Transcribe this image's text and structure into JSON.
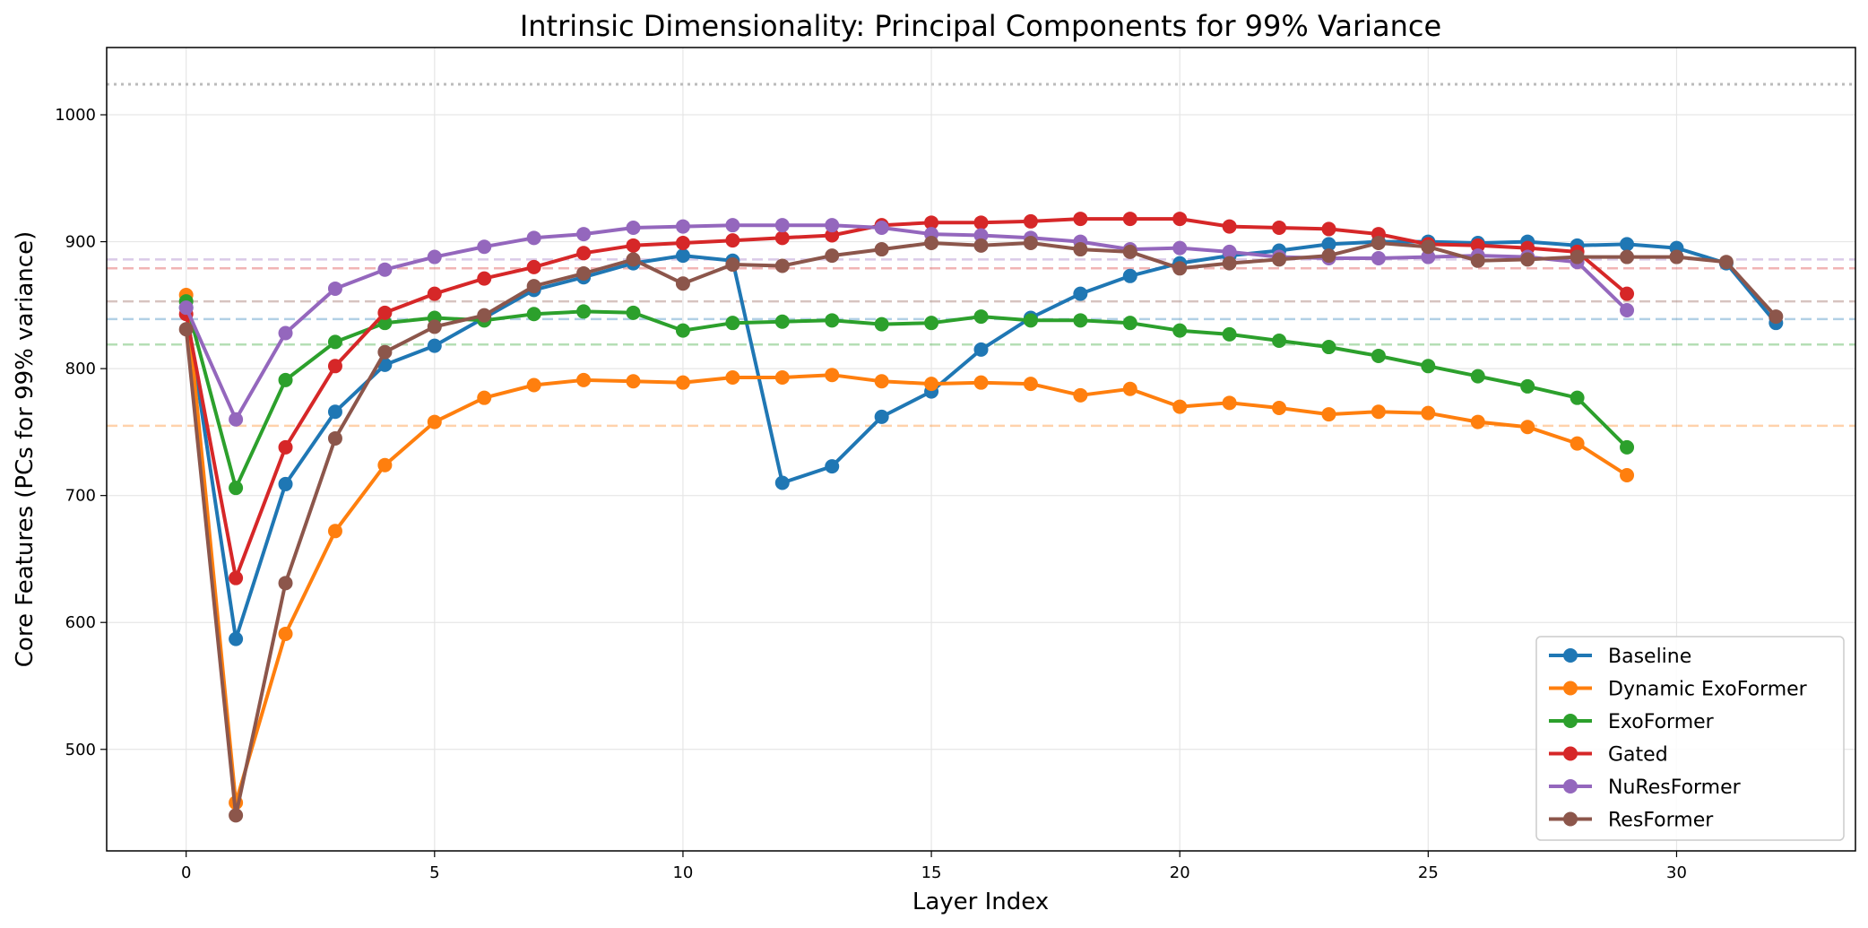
{
  "chart_data": {
    "type": "line",
    "title": "Intrinsic Dimensionality: Principal Components for 99% Variance",
    "xlabel": "Layer Index",
    "ylabel": "Core Features (PCs for 99% variance)",
    "xlim": [
      -1.6,
      33.6
    ],
    "ylim": [
      420,
      1053
    ],
    "xticks": [
      0,
      5,
      10,
      15,
      20,
      25,
      30
    ],
    "yticks": [
      500,
      600,
      700,
      800,
      900,
      1000
    ],
    "grid": true,
    "legend_position": "lower-right",
    "reference_line": {
      "value": 1024,
      "color": "#bbbbbb",
      "style": "dotted"
    },
    "series": [
      {
        "name": "Baseline",
        "color": "#1f77b4",
        "mean": 839,
        "x": [
          0,
          1,
          2,
          3,
          4,
          5,
          6,
          7,
          8,
          9,
          10,
          11,
          12,
          13,
          14,
          15,
          16,
          17,
          18,
          19,
          20,
          21,
          22,
          23,
          24,
          25,
          26,
          27,
          28,
          29,
          30,
          31,
          32
        ],
        "values": [
          848,
          587,
          709,
          766,
          803,
          818,
          840,
          862,
          872,
          883,
          889,
          885,
          710,
          723,
          762,
          782,
          815,
          840,
          859,
          873,
          883,
          889,
          893,
          898,
          900,
          900,
          899,
          900,
          897,
          898,
          895,
          883,
          836
        ]
      },
      {
        "name": "Dynamic ExoFormer",
        "color": "#ff7f0e",
        "mean": 755,
        "x": [
          0,
          1,
          2,
          3,
          4,
          5,
          6,
          7,
          8,
          9,
          10,
          11,
          12,
          13,
          14,
          15,
          16,
          17,
          18,
          19,
          20,
          21,
          22,
          23,
          24,
          25,
          26,
          27,
          28,
          29
        ],
        "values": [
          858,
          458,
          591,
          672,
          724,
          758,
          777,
          787,
          791,
          790,
          789,
          793,
          793,
          795,
          790,
          788,
          789,
          788,
          779,
          784,
          770,
          773,
          769,
          764,
          766,
          765,
          758,
          754,
          741,
          716
        ]
      },
      {
        "name": "ExoFormer",
        "color": "#2ca02c",
        "mean": 819,
        "x": [
          0,
          1,
          2,
          3,
          4,
          5,
          6,
          7,
          8,
          9,
          10,
          11,
          12,
          13,
          14,
          15,
          16,
          17,
          18,
          19,
          20,
          21,
          22,
          23,
          24,
          25,
          26,
          27,
          28,
          29
        ],
        "values": [
          853,
          706,
          791,
          821,
          836,
          840,
          838,
          843,
          845,
          844,
          830,
          836,
          837,
          838,
          835,
          836,
          841,
          838,
          838,
          836,
          830,
          827,
          822,
          817,
          810,
          802,
          794,
          786,
          777,
          738
        ]
      },
      {
        "name": "Gated",
        "color": "#d62728",
        "mean": 879,
        "x": [
          0,
          1,
          2,
          3,
          4,
          5,
          6,
          7,
          8,
          9,
          10,
          11,
          12,
          13,
          14,
          15,
          16,
          17,
          18,
          19,
          20,
          21,
          22,
          23,
          24,
          25,
          26,
          27,
          28,
          29
        ],
        "values": [
          843,
          635,
          738,
          802,
          844,
          859,
          871,
          880,
          891,
          897,
          899,
          901,
          903,
          905,
          913,
          915,
          915,
          916,
          918,
          918,
          918,
          912,
          911,
          910,
          906,
          898,
          897,
          895,
          892,
          859
        ]
      },
      {
        "name": "NuResFormer",
        "color": "#9467bd",
        "mean": 886,
        "x": [
          0,
          1,
          2,
          3,
          4,
          5,
          6,
          7,
          8,
          9,
          10,
          11,
          12,
          13,
          14,
          15,
          16,
          17,
          18,
          19,
          20,
          21,
          22,
          23,
          24,
          25,
          26,
          27,
          28,
          29
        ],
        "values": [
          848,
          760,
          828,
          863,
          878,
          888,
          896,
          903,
          906,
          911,
          912,
          913,
          913,
          913,
          911,
          906,
          905,
          903,
          900,
          894,
          895,
          892,
          888,
          887,
          887,
          888,
          889,
          888,
          884,
          846
        ]
      },
      {
        "name": "ResFormer",
        "color": "#8c564b",
        "mean": 853,
        "x": [
          0,
          1,
          2,
          3,
          4,
          5,
          6,
          7,
          8,
          9,
          10,
          11,
          12,
          13,
          14,
          15,
          16,
          17,
          18,
          19,
          20,
          21,
          22,
          23,
          24,
          25,
          26,
          27,
          28,
          29,
          30,
          31,
          32
        ],
        "values": [
          831,
          448,
          631,
          745,
          813,
          833,
          842,
          865,
          875,
          886,
          867,
          882,
          881,
          889,
          894,
          899,
          897,
          899,
          894,
          892,
          879,
          883,
          886,
          889,
          899,
          896,
          885,
          886,
          888,
          888,
          888,
          884,
          841
        ]
      }
    ]
  }
}
